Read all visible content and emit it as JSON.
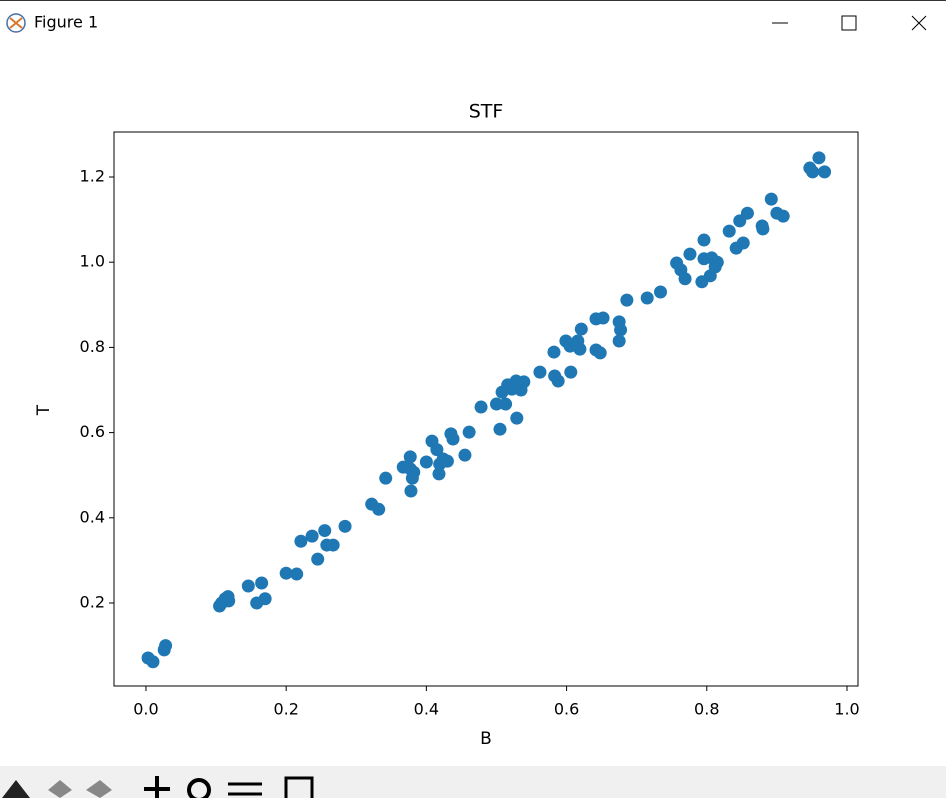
{
  "window": {
    "title": "Figure 1"
  },
  "chart_data": {
    "type": "scatter",
    "title": "STF",
    "x_label": "B",
    "y_label": "T",
    "color": "#1f77b4",
    "xlim": [
      -0.0456,
      1.0157
    ],
    "ylim": [
      0.0052,
      1.3056
    ],
    "xticks": [
      {
        "value": 0,
        "label": "0.0"
      },
      0.2,
      0.4,
      0.6,
      0.8,
      {
        "value": 1,
        "label": "1.0"
      }
    ],
    "yticks": [
      0.2,
      0.4,
      0.6,
      0.8,
      {
        "value": 1,
        "label": "1.0"
      },
      1.2
    ],
    "x": [
      0.003,
      0.01,
      0.026,
      0.028,
      0.105,
      0.108,
      0.113,
      0.117,
      0.118,
      0.146,
      0.158,
      0.165,
      0.17,
      0.2,
      0.215,
      0.221,
      0.237,
      0.245,
      0.255,
      0.258,
      0.267,
      0.284,
      0.322,
      0.332,
      0.342,
      0.367,
      0.377,
      0.377,
      0.382,
      0.38,
      0.378,
      0.4,
      0.408,
      0.415,
      0.419,
      0.418,
      0.424,
      0.43,
      0.435,
      0.438,
      0.455,
      0.461,
      0.478,
      0.5,
      0.505,
      0.508,
      0.513,
      0.516,
      0.52,
      0.522,
      0.528,
      0.529,
      0.532,
      0.535,
      0.539,
      0.562,
      0.582,
      0.583,
      0.588,
      0.599,
      0.605,
      0.606,
      0.616,
      0.619,
      0.621,
      0.642,
      0.642,
      0.648,
      0.652,
      0.675,
      0.677,
      0.675,
      0.686,
      0.715,
      0.734,
      0.757,
      0.763,
      0.769,
      0.776,
      0.793,
      0.796,
      0.796,
      0.805,
      0.807,
      0.812,
      0.815,
      0.832,
      0.842,
      0.847,
      0.852,
      0.858,
      0.879,
      0.88,
      0.892,
      0.9,
      0.909,
      0.947,
      0.951,
      0.96,
      0.968
    ],
    "values": [
      0.071,
      0.062,
      0.09,
      0.1,
      0.193,
      0.2,
      0.21,
      0.215,
      0.205,
      0.24,
      0.2,
      0.247,
      0.21,
      0.27,
      0.268,
      0.345,
      0.357,
      0.303,
      0.37,
      0.336,
      0.336,
      0.38,
      0.432,
      0.42,
      0.493,
      0.519,
      0.543,
      0.515,
      0.507,
      0.493,
      0.463,
      0.531,
      0.58,
      0.56,
      0.526,
      0.503,
      0.538,
      0.533,
      0.597,
      0.585,
      0.547,
      0.601,
      0.66,
      0.667,
      0.608,
      0.695,
      0.667,
      0.712,
      0.707,
      0.702,
      0.721,
      0.634,
      0.709,
      0.7,
      0.719,
      0.742,
      0.789,
      0.733,
      0.721,
      0.815,
      0.803,
      0.742,
      0.815,
      0.796,
      0.843,
      0.867,
      0.794,
      0.787,
      0.869,
      0.86,
      0.841,
      0.815,
      0.911,
      0.916,
      0.93,
      0.998,
      0.982,
      0.961,
      1.019,
      0.954,
      1.052,
      1.008,
      0.968,
      1.01,
      0.989,
      1.0,
      1.073,
      1.033,
      1.097,
      1.045,
      1.115,
      1.085,
      1.078,
      1.148,
      1.115,
      1.108,
      1.221,
      1.212,
      1.245,
      1.212
    ]
  }
}
